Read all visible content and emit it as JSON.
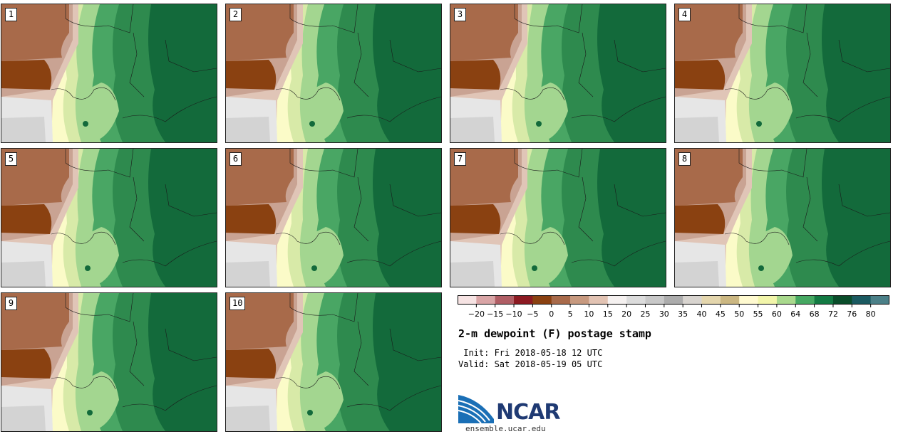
{
  "map_title": "2-m dewpoint (F) postage stamp",
  "init_line": " Init: Fri 2018-05-18 12 UTC",
  "valid_line": "Valid: Sat 2018-05-19 05 UTC",
  "logo_text": "NCAR",
  "site_url": "ensemble.ucar.edu",
  "members": [
    {
      "label": "1"
    },
    {
      "label": "2"
    },
    {
      "label": "3"
    },
    {
      "label": "4"
    },
    {
      "label": "5"
    },
    {
      "label": "6"
    },
    {
      "label": "7"
    },
    {
      "label": "8"
    },
    {
      "label": "9"
    },
    {
      "label": "10"
    }
  ],
  "colorbar": {
    "tick_labels": [
      "−20",
      "−15",
      "−10",
      "−5",
      "0",
      "5",
      "10",
      "15",
      "20",
      "25",
      "30",
      "35",
      "40",
      "45",
      "50",
      "55",
      "60",
      "64",
      "68",
      "72",
      "76",
      "80"
    ],
    "colors": [
      "#f6e3e3",
      "#d9a5a6",
      "#b05e65",
      "#8c1a22",
      "#8a4111",
      "#a86a4a",
      "#c7997f",
      "#e2c3b3",
      "#f5f1f0",
      "#dcdcdc",
      "#c8c8c8",
      "#acacac",
      "#d8d4cf",
      "#e4d6ad",
      "#cbb782",
      "#fffad0",
      "#f2f5aa",
      "#a9d98d",
      "#46a862",
      "#137a43",
      "#0a4d2a",
      "#1b5a61",
      "#4b8088"
    ]
  },
  "palette": {
    "dark_brown": "#8a4111",
    "brown": "#a86a4a",
    "tan": "#c9a393",
    "light_tan": "#e0c5b7",
    "gray": "#d3d3d3",
    "light_gray": "#e6e6e6",
    "yellow": "#fbfbc8",
    "pale_green": "#d8eaa8",
    "light_green": "#a3d690",
    "green": "#49a664",
    "mid_green": "#2e8a4e",
    "dark_green": "#136a3b",
    "deep_green": "#0e4f2c",
    "burgundy": "#8c1a22",
    "logo_blue": "#1a6fb6"
  }
}
